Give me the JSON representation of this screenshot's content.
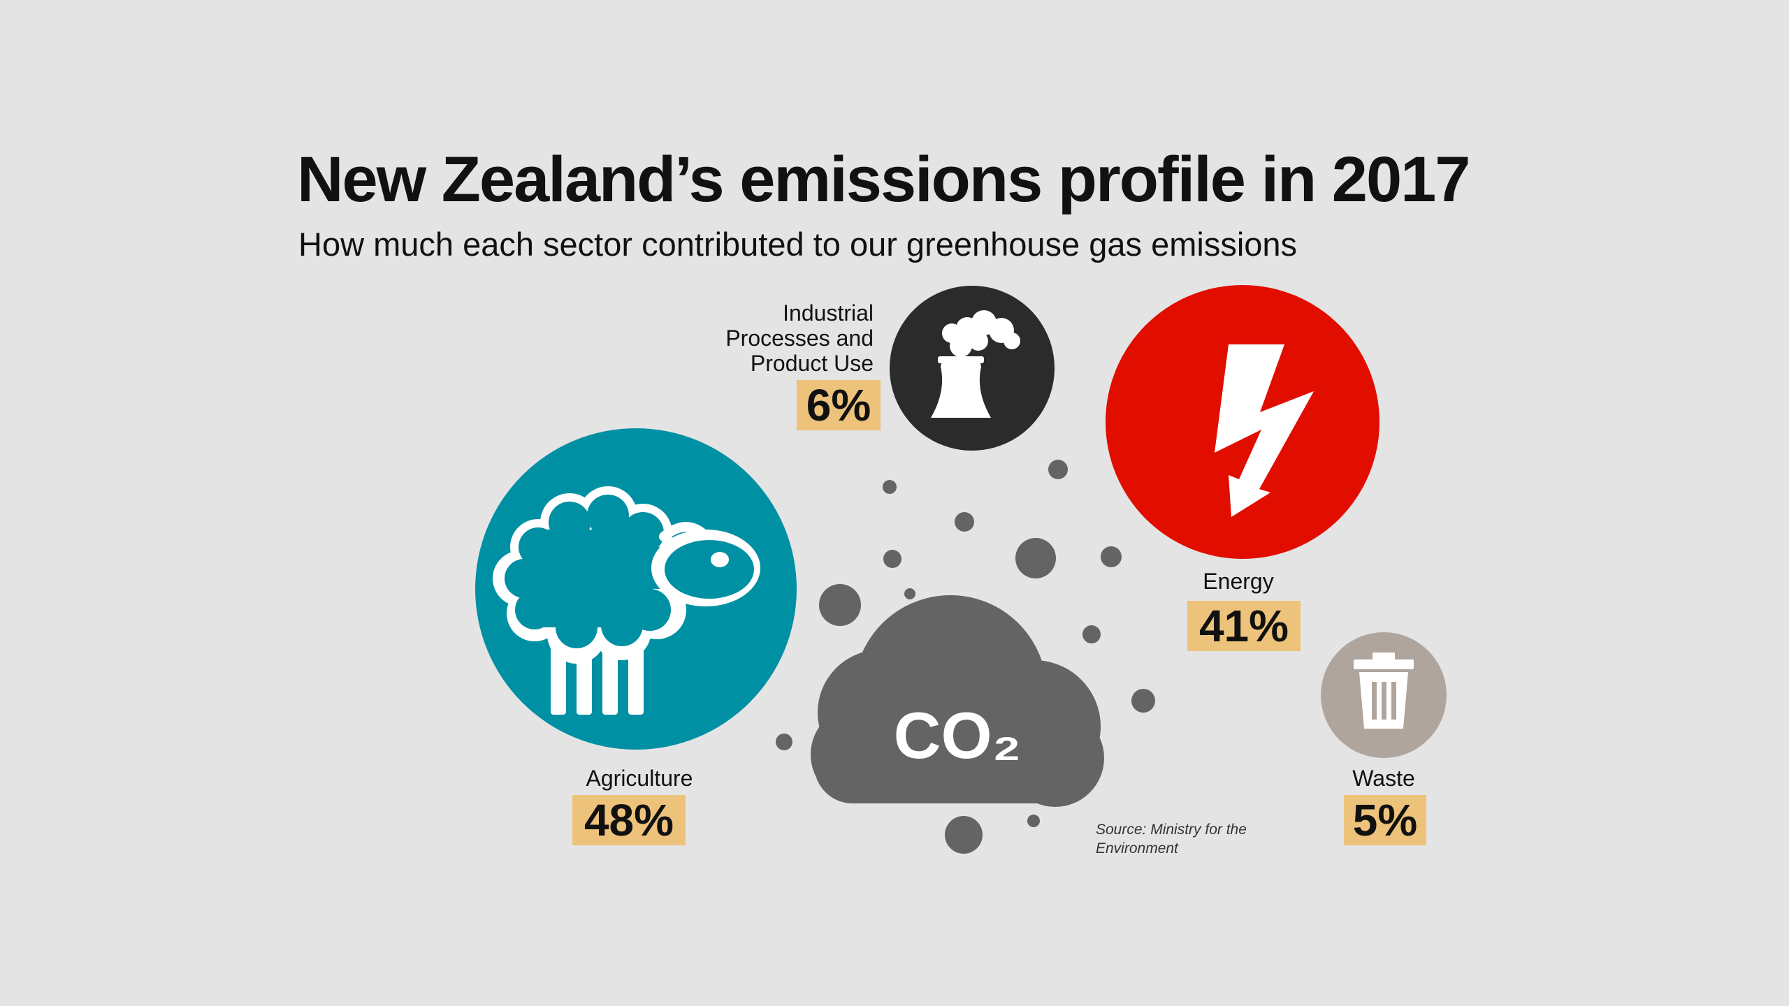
{
  "title": "New Zealand’s emissions profile in 2017",
  "subtitle": "How much each sector contributed to our greenhouse gas emissions",
  "center_label": "CO₂",
  "source": "Source: Ministry for the Environment",
  "colors": {
    "background": "#e4e4e4",
    "agriculture": "#0090a3",
    "energy": "#e10e00",
    "industrial": "#2b2b2b",
    "waste": "#b0a59c",
    "label_box": "#edc27a",
    "cloud": "#646464"
  },
  "icons": {
    "agriculture": "sheep-icon",
    "energy": "lightning-bolt-icon",
    "industrial": "factory-chimney-icon",
    "waste": "trash-can-icon",
    "center": "co2-cloud-icon"
  },
  "chart_data": {
    "type": "bubble",
    "title": "New Zealand’s emissions profile in 2017",
    "subtitle": "How much each sector contributed to our greenhouse gas emissions",
    "unit": "%",
    "categories": [
      "Agriculture",
      "Energy",
      "Industrial Processes and Product Use",
      "Waste"
    ],
    "values": [
      48,
      41,
      6,
      5
    ],
    "value_labels": [
      "48%",
      "41%",
      "6%",
      "5%"
    ],
    "label_lines": [
      [
        "Agriculture"
      ],
      [
        "Energy"
      ],
      [
        "Industrial",
        "Processes and",
        "Product Use"
      ],
      [
        "Waste"
      ]
    ]
  }
}
